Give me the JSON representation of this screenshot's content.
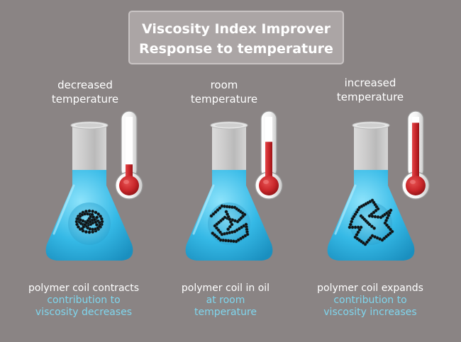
{
  "title": {
    "line1": "Viscosity Index Improver",
    "line2": "Response to temperature"
  },
  "panels": [
    {
      "heading": [
        "decreased",
        "temperature"
      ],
      "thermometer_level": 0.2,
      "coil_state": "contracted",
      "caption": {
        "main": "polymer coil contracts",
        "detail": [
          "contribution to",
          "viscosity decreases"
        ]
      }
    },
    {
      "heading": [
        "room",
        "temperature"
      ],
      "thermometer_level": 0.58,
      "coil_state": "room",
      "caption": {
        "main": "polymer coil in oil",
        "detail": [
          "at room",
          "temperature"
        ]
      }
    },
    {
      "heading": [
        "increased",
        "temperature"
      ],
      "thermometer_level": 0.9,
      "coil_state": "expanded",
      "caption": {
        "main": "polymer coil expands",
        "detail": [
          "contribution to",
          "viscosity increases"
        ]
      }
    }
  ],
  "colors": {
    "background": "#8a8484",
    "title_box": "#aba5a5",
    "title_text": "#ffffff",
    "heading_text": "#ffffff",
    "caption_main": "#ffffff",
    "caption_detail": "#7fd6ee",
    "liquid": "#35b9e6",
    "mercury": "#c8262a",
    "coil": "#111111"
  },
  "icons": {
    "flask": "erlenmeyer-flask-icon",
    "thermometer": "thermometer-icon",
    "coil": "polymer-coil-icon"
  }
}
